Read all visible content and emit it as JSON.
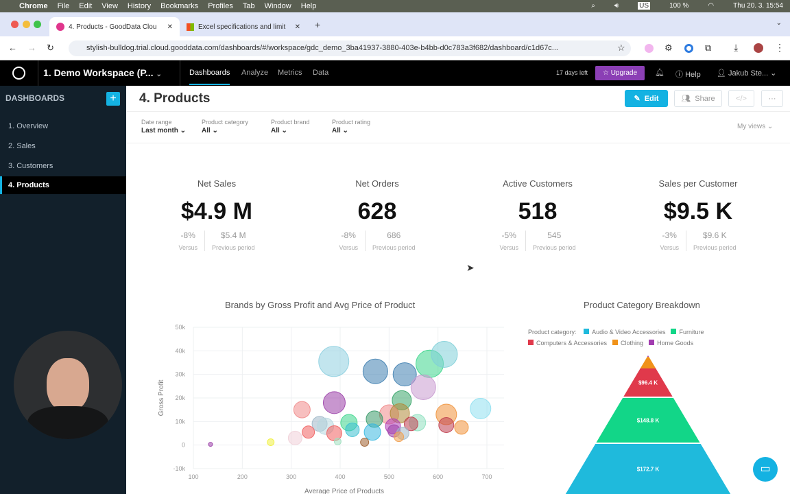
{
  "menubar": {
    "items": [
      "Chrome",
      "File",
      "Edit",
      "View",
      "History",
      "Bookmarks",
      "Profiles",
      "Tab",
      "Window",
      "Help"
    ],
    "battery": "100 %",
    "keyboard": "US",
    "datetime": "Thu 20. 3.  15:54"
  },
  "browser": {
    "tabs": [
      {
        "title": "4. Products - GoodData Clou"
      },
      {
        "title": "Excel specifications and limit"
      }
    ],
    "url": "stylish-bulldog.trial.cloud.gooddata.com/dashboards/#/workspace/gdc_demo_3ba41937-3880-403e-b4bb-d0c783a3f682/dashboard/c1d67c..."
  },
  "appheader": {
    "workspace": "1. Demo Workspace (P...",
    "nav": [
      "Dashboards",
      "Analyze",
      "Metrics",
      "Data"
    ],
    "trial": "17 days left",
    "upgrade": "Upgrade",
    "help": "Help",
    "user": "Jakub Ste..."
  },
  "sidebar": {
    "title": "DASHBOARDS",
    "items": [
      "1. Overview",
      "2. Sales",
      "3. Customers",
      "4. Products"
    ],
    "active": 3
  },
  "dashboard": {
    "title": "4. Products",
    "edit": "Edit",
    "share": "Share",
    "my_views": "My views",
    "filters": [
      {
        "label": "Date range",
        "value": "Last month"
      },
      {
        "label": "Product category",
        "value": "All"
      },
      {
        "label": "Product brand",
        "value": "All"
      },
      {
        "label": "Product rating",
        "value": "All"
      }
    ]
  },
  "kpis": [
    {
      "title": "Net Sales",
      "value": "$4.9 M",
      "change": "-8%",
      "change_label": "Versus",
      "prev": "$5.4 M",
      "prev_label": "Previous period"
    },
    {
      "title": "Net Orders",
      "value": "628",
      "change": "-8%",
      "change_label": "Versus",
      "prev": "686",
      "prev_label": "Previous period"
    },
    {
      "title": "Active Customers",
      "value": "518",
      "change": "-5%",
      "change_label": "Versus",
      "prev": "545",
      "prev_label": "Previous period"
    },
    {
      "title": "Sales per Customer",
      "value": "$9.5 K",
      "change": "-3%",
      "change_label": "Versus",
      "prev": "$9.6 K",
      "prev_label": "Previous period"
    }
  ],
  "chart_data": [
    {
      "type": "scatter",
      "title": "Brands by Gross Profit and Avg Price of Product",
      "xlabel": "Average Price of Products",
      "ylabel": "Gross Profit",
      "xlim": [
        100,
        735
      ],
      "ylim": [
        -10000,
        50000
      ],
      "xticks": [
        "100",
        "200",
        "300",
        "400",
        "500",
        "600",
        "700"
      ],
      "yticks": [
        "50k",
        "40k",
        "30k",
        "20k",
        "10k",
        "0",
        "-10k"
      ],
      "grid": true,
      "points": [
        {
          "x": 387,
          "y": 35500,
          "size": 22,
          "color": "#8fd0e0"
        },
        {
          "x": 472,
          "y": 31300,
          "size": 18,
          "color": "#3f7fb0"
        },
        {
          "x": 532,
          "y": 30000,
          "size": 17,
          "color": "#3f7fb0"
        },
        {
          "x": 583,
          "y": 34500,
          "size": 20,
          "color": "#3dd68c"
        },
        {
          "x": 613,
          "y": 38500,
          "size": 19,
          "color": "#7fcfd8"
        },
        {
          "x": 570,
          "y": 24500,
          "size": 18,
          "color": "#c89ad0"
        },
        {
          "x": 388,
          "y": 18000,
          "size": 16,
          "color": "#9b40a8"
        },
        {
          "x": 526,
          "y": 19000,
          "size": 14,
          "color": "#3aa56a"
        },
        {
          "x": 322,
          "y": 15000,
          "size": 12,
          "color": "#f08a8a"
        },
        {
          "x": 687,
          "y": 15500,
          "size": 15,
          "color": "#8fe0f0"
        },
        {
          "x": 617,
          "y": 13000,
          "size": 15,
          "color": "#f0923a"
        },
        {
          "x": 500,
          "y": 13000,
          "size": 14,
          "color": "#f08a8a"
        },
        {
          "x": 522,
          "y": 13500,
          "size": 14,
          "color": "#b08a3a"
        },
        {
          "x": 470,
          "y": 11000,
          "size": 12,
          "color": "#3a9a6a"
        },
        {
          "x": 418,
          "y": 9500,
          "size": 12,
          "color": "#3dd68c"
        },
        {
          "x": 558,
          "y": 9500,
          "size": 12,
          "color": "#8fe0c0"
        },
        {
          "x": 358,
          "y": 9000,
          "size": 11,
          "color": "#a0b8c8"
        },
        {
          "x": 370,
          "y": 8000,
          "size": 12,
          "color": "#b8d8e0"
        },
        {
          "x": 545,
          "y": 9000,
          "size": 10,
          "color": "#c04050"
        },
        {
          "x": 617,
          "y": 8500,
          "size": 11,
          "color": "#c04050"
        },
        {
          "x": 648,
          "y": 7500,
          "size": 10,
          "color": "#f0923a"
        },
        {
          "x": 425,
          "y": 6500,
          "size": 10,
          "color": "#3ac0d0"
        },
        {
          "x": 466,
          "y": 5500,
          "size": 12,
          "color": "#3ab8e0"
        },
        {
          "x": 388,
          "y": 5000,
          "size": 11,
          "color": "#f06060"
        },
        {
          "x": 335,
          "y": 5500,
          "size": 9,
          "color": "#f06060"
        },
        {
          "x": 508,
          "y": 8000,
          "size": 11,
          "color": "#b040b8"
        },
        {
          "x": 510,
          "y": 6000,
          "size": 9,
          "color": "#9b40a8"
        },
        {
          "x": 528,
          "y": 5000,
          "size": 9,
          "color": "#a0b8c8"
        },
        {
          "x": 520,
          "y": 3500,
          "size": 7,
          "color": "#f0a050"
        },
        {
          "x": 308,
          "y": 3000,
          "size": 10,
          "color": "#f0d0d8"
        },
        {
          "x": 450,
          "y": 1200,
          "size": 6,
          "color": "#a06030"
        },
        {
          "x": 395,
          "y": 1500,
          "size": 5,
          "color": "#a0e0c0"
        },
        {
          "x": 258,
          "y": 1200,
          "size": 5,
          "color": "#f0f040"
        },
        {
          "x": 135,
          "y": 300,
          "size": 3,
          "color": "#9b40a8"
        }
      ]
    },
    {
      "type": "pyramid",
      "title": "Product Category Breakdown",
      "legend_title": "Product category:",
      "legend_placement": "top",
      "series": [
        {
          "name": "Audio & Video Accessories",
          "color": "#1fbadc",
          "label": "$172.7 K",
          "value": 172.7
        },
        {
          "name": "Furniture",
          "color": "#12d688",
          "label": "$148.8 K",
          "value": 148.8
        },
        {
          "name": "Computers & Accessories",
          "color": "#e0394b",
          "label": "$96.4 K",
          "value": 96.4
        },
        {
          "name": "Clothing",
          "color": "#f0921a",
          "label": ""
        },
        {
          "name": "Home Goods",
          "color": "#a23db0",
          "label": ""
        }
      ]
    }
  ]
}
